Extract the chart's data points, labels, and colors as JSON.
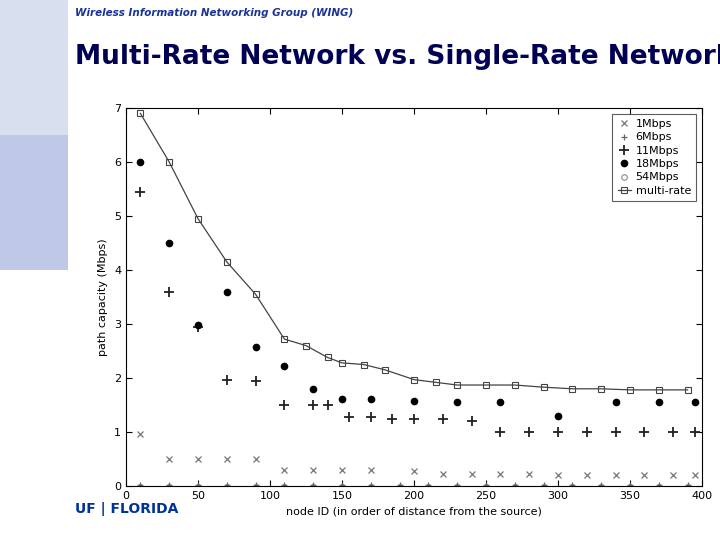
{
  "title": "Multi-Rate Network vs. Single-Rate Network",
  "subtitle": "Wireless Information Networking Group (WING)",
  "xlabel": "node ID (in order of distance from the source)",
  "ylabel": "path capacity (Mbps)",
  "xlim": [
    0,
    400
  ],
  "ylim": [
    0,
    7
  ],
  "yticks": [
    0,
    1,
    2,
    3,
    4,
    5,
    6,
    7
  ],
  "xticks": [
    0,
    50,
    100,
    150,
    200,
    250,
    300,
    350,
    400
  ],
  "bg_color": "#ffffff",
  "left_bar_color": "#b8b8d8",
  "header_bg": "#ffffff",
  "subtitle_color": "#1a3399",
  "title_color": "#000055",
  "series": {
    "1Mbps": {
      "x": [
        10,
        30,
        50,
        70,
        90,
        110,
        130,
        150,
        170,
        200,
        220,
        240,
        260,
        280,
        300,
        320,
        340,
        360,
        380,
        395
      ],
      "y": [
        0.97,
        0.5,
        0.5,
        0.5,
        0.5,
        0.3,
        0.3,
        0.3,
        0.3,
        0.28,
        0.22,
        0.22,
        0.22,
        0.22,
        0.2,
        0.2,
        0.2,
        0.2,
        0.2,
        0.2
      ]
    },
    "6Mbps": {
      "x": [
        10,
        30,
        50,
        70,
        90,
        110,
        130,
        150,
        170,
        190,
        210,
        230,
        250,
        270,
        290,
        310,
        330,
        350,
        370,
        390
      ],
      "y": [
        0.02,
        0.02,
        0.02,
        0.02,
        0.02,
        0.02,
        0.02,
        0.02,
        0.02,
        0.02,
        0.02,
        0.02,
        0.02,
        0.02,
        0.02,
        0.02,
        0.02,
        0.02,
        0.02,
        0.02
      ]
    },
    "11Mbps": {
      "x": [
        10,
        30,
        50,
        70,
        90,
        110,
        130,
        140,
        155,
        170,
        185,
        200,
        220,
        240,
        260,
        280,
        300,
        320,
        340,
        360,
        380,
        395
      ],
      "y": [
        5.45,
        3.6,
        2.95,
        1.97,
        1.95,
        1.5,
        1.5,
        1.5,
        1.28,
        1.28,
        1.25,
        1.25,
        1.25,
        1.2,
        1.0,
        1.0,
        1.0,
        1.0,
        1.0,
        1.0,
        1.0,
        1.0
      ]
    },
    "18Mbps": {
      "x": [
        10,
        30,
        50,
        70,
        90,
        110,
        130,
        150,
        170,
        200,
        230,
        260,
        300,
        340,
        370,
        395
      ],
      "y": [
        6.0,
        4.5,
        2.98,
        3.6,
        2.58,
        2.22,
        1.79,
        1.62,
        1.62,
        1.58,
        1.55,
        1.55,
        1.3,
        1.55,
        1.55,
        1.55
      ]
    },
    "54Mbps": {
      "x": [
        10,
        30,
        50,
        70,
        90,
        110,
        130,
        150,
        170,
        190,
        210,
        230,
        250,
        270,
        290,
        310,
        330,
        350,
        370,
        390
      ],
      "y": [
        0.0,
        0.0,
        0.0,
        0.0,
        0.0,
        0.0,
        0.0,
        0.0,
        0.0,
        0.0,
        0.0,
        0.0,
        0.0,
        0.0,
        0.0,
        0.0,
        0.0,
        0.0,
        0.0,
        0.0
      ]
    },
    "multi-rate": {
      "x": [
        10,
        30,
        50,
        70,
        90,
        110,
        125,
        140,
        150,
        165,
        180,
        200,
        215,
        230,
        250,
        270,
        290,
        310,
        330,
        350,
        370,
        390
      ],
      "y": [
        6.9,
        6.0,
        4.95,
        4.15,
        3.55,
        2.72,
        2.6,
        2.38,
        2.28,
        2.25,
        2.15,
        1.97,
        1.92,
        1.87,
        1.87,
        1.87,
        1.83,
        1.8,
        1.8,
        1.78,
        1.78,
        1.78
      ]
    }
  }
}
